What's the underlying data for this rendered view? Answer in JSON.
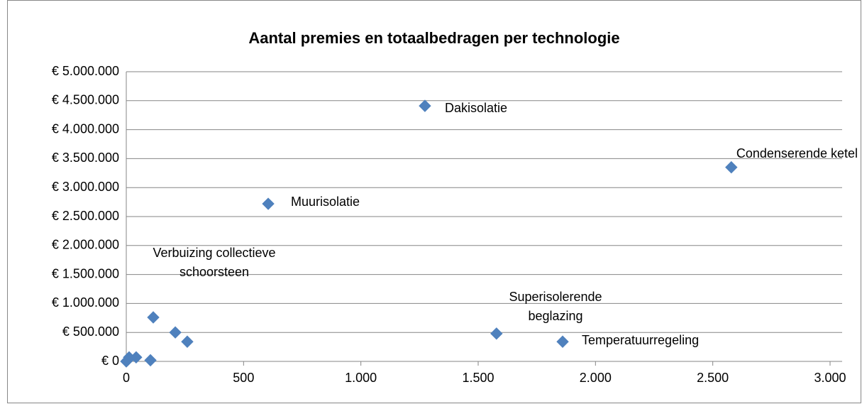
{
  "chart_data": {
    "type": "scatter",
    "title": "Aantal premies en totaalbedragen per technologie",
    "x": [
      1273,
      2579,
      605,
      1578,
      1860,
      115,
      209,
      260,
      103,
      42,
      12,
      5,
      0
    ],
    "values": [
      4410000,
      3350000,
      2720000,
      480000,
      340000,
      760000,
      500000,
      340000,
      20000,
      70000,
      70000,
      20000,
      0
    ],
    "point_labels": [
      "Dakisolatie",
      "Condenserende ketel",
      "Muurisolatie",
      "Superisolerende beglazing",
      "Temperatuurregeling",
      "Verbuizing collectieve schoorsteen",
      null,
      null,
      null,
      null,
      null,
      null,
      null
    ],
    "color": "#4f81bd",
    "xlim": [
      0,
      3000
    ],
    "xticks": [
      0,
      500,
      {
        "value": 1000,
        "label": "1.000"
      },
      {
        "value": 1500,
        "label": "1.500"
      },
      {
        "value": 2000,
        "label": "2.000"
      },
      {
        "value": 2500,
        "label": "2.500"
      },
      {
        "value": 3000,
        "label": "3.000"
      }
    ],
    "ylim": [
      0,
      5000000
    ],
    "yticks": [
      {
        "value": 0,
        "label": "€ 0"
      },
      {
        "value": 500000,
        "label": "€ 500.000"
      },
      {
        "value": 1000000,
        "label": "€ 1.000.000"
      },
      {
        "value": 1500000,
        "label": "€ 1.500.000"
      },
      {
        "value": 2000000,
        "label": "€ 2.000.000"
      },
      {
        "value": 2500000,
        "label": "€ 2.500.000"
      },
      {
        "value": 3000000,
        "label": "€ 3.000.000"
      },
      {
        "value": 3500000,
        "label": "€ 3.500.000"
      },
      {
        "value": 4000000,
        "label": "€ 4.000.000"
      },
      {
        "value": 4500000,
        "label": "€ 4.500.000"
      },
      {
        "value": 5000000,
        "label": "€ 5.000.000"
      }
    ],
    "grid": true
  }
}
